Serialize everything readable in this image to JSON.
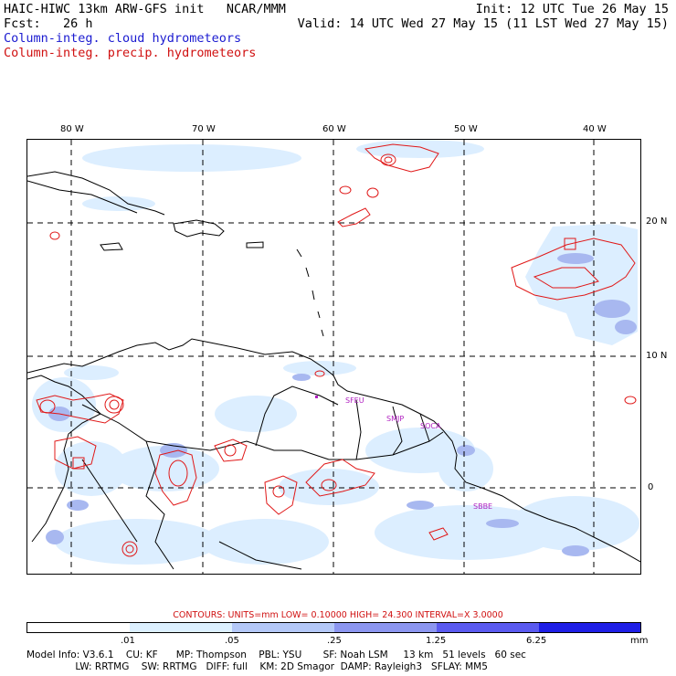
{
  "header": {
    "title_left": "HAIC-HIWC 13km ARW-GFS init   NCAR/MMM",
    "init": "Init: 12 UTC Tue 26 May 15",
    "fcst": "Fcst:   26 h",
    "valid": "Valid: 14 UTC Wed 27 May 15 (11 LST Wed 27 May 15)",
    "legend_cloud": "Column-integ. cloud hydrometeors",
    "legend_precip": "Column-integ. precip. hydrometeors"
  },
  "map": {
    "lon_labels": [
      "80 W",
      "70 W",
      "60 W",
      "50 W",
      "40 W"
    ],
    "lat_labels": [
      "20 N",
      "10 N",
      "0"
    ],
    "stations": [
      "SFEU",
      "SMJP",
      "SOCA",
      "SBBE"
    ],
    "colors": {
      "cloud_shade": "#dceeff",
      "cloud_mid": "#a8b8f0",
      "precip_contour": "#e01818"
    }
  },
  "contours_text": "CONTOURS:  UNITS=mm  LOW= 0.10000       HIGH=  24.300      INTERVAL=X  3.0000",
  "colorbar": {
    "ticks": [
      ".01",
      ".05",
      ".25",
      "1.25",
      "6.25"
    ],
    "unit": "mm",
    "colors": [
      "#ffffff",
      "#dcf0ff",
      "#b4c8f8",
      "#8c96f0",
      "#5a5af0",
      "#1e1ee6"
    ]
  },
  "footer": {
    "line1": "Model Info: V3.6.1    CU: KF      MP: Thompson    PBL: YSU       SF: Noah LSM     13 km   51 levels   60 sec",
    "line2": "                LW: RRTMG    SW: RRTMG   DIFF: full    KM: 2D Smagor  DAMP: Rayleigh3   SFLAY: MM5"
  }
}
